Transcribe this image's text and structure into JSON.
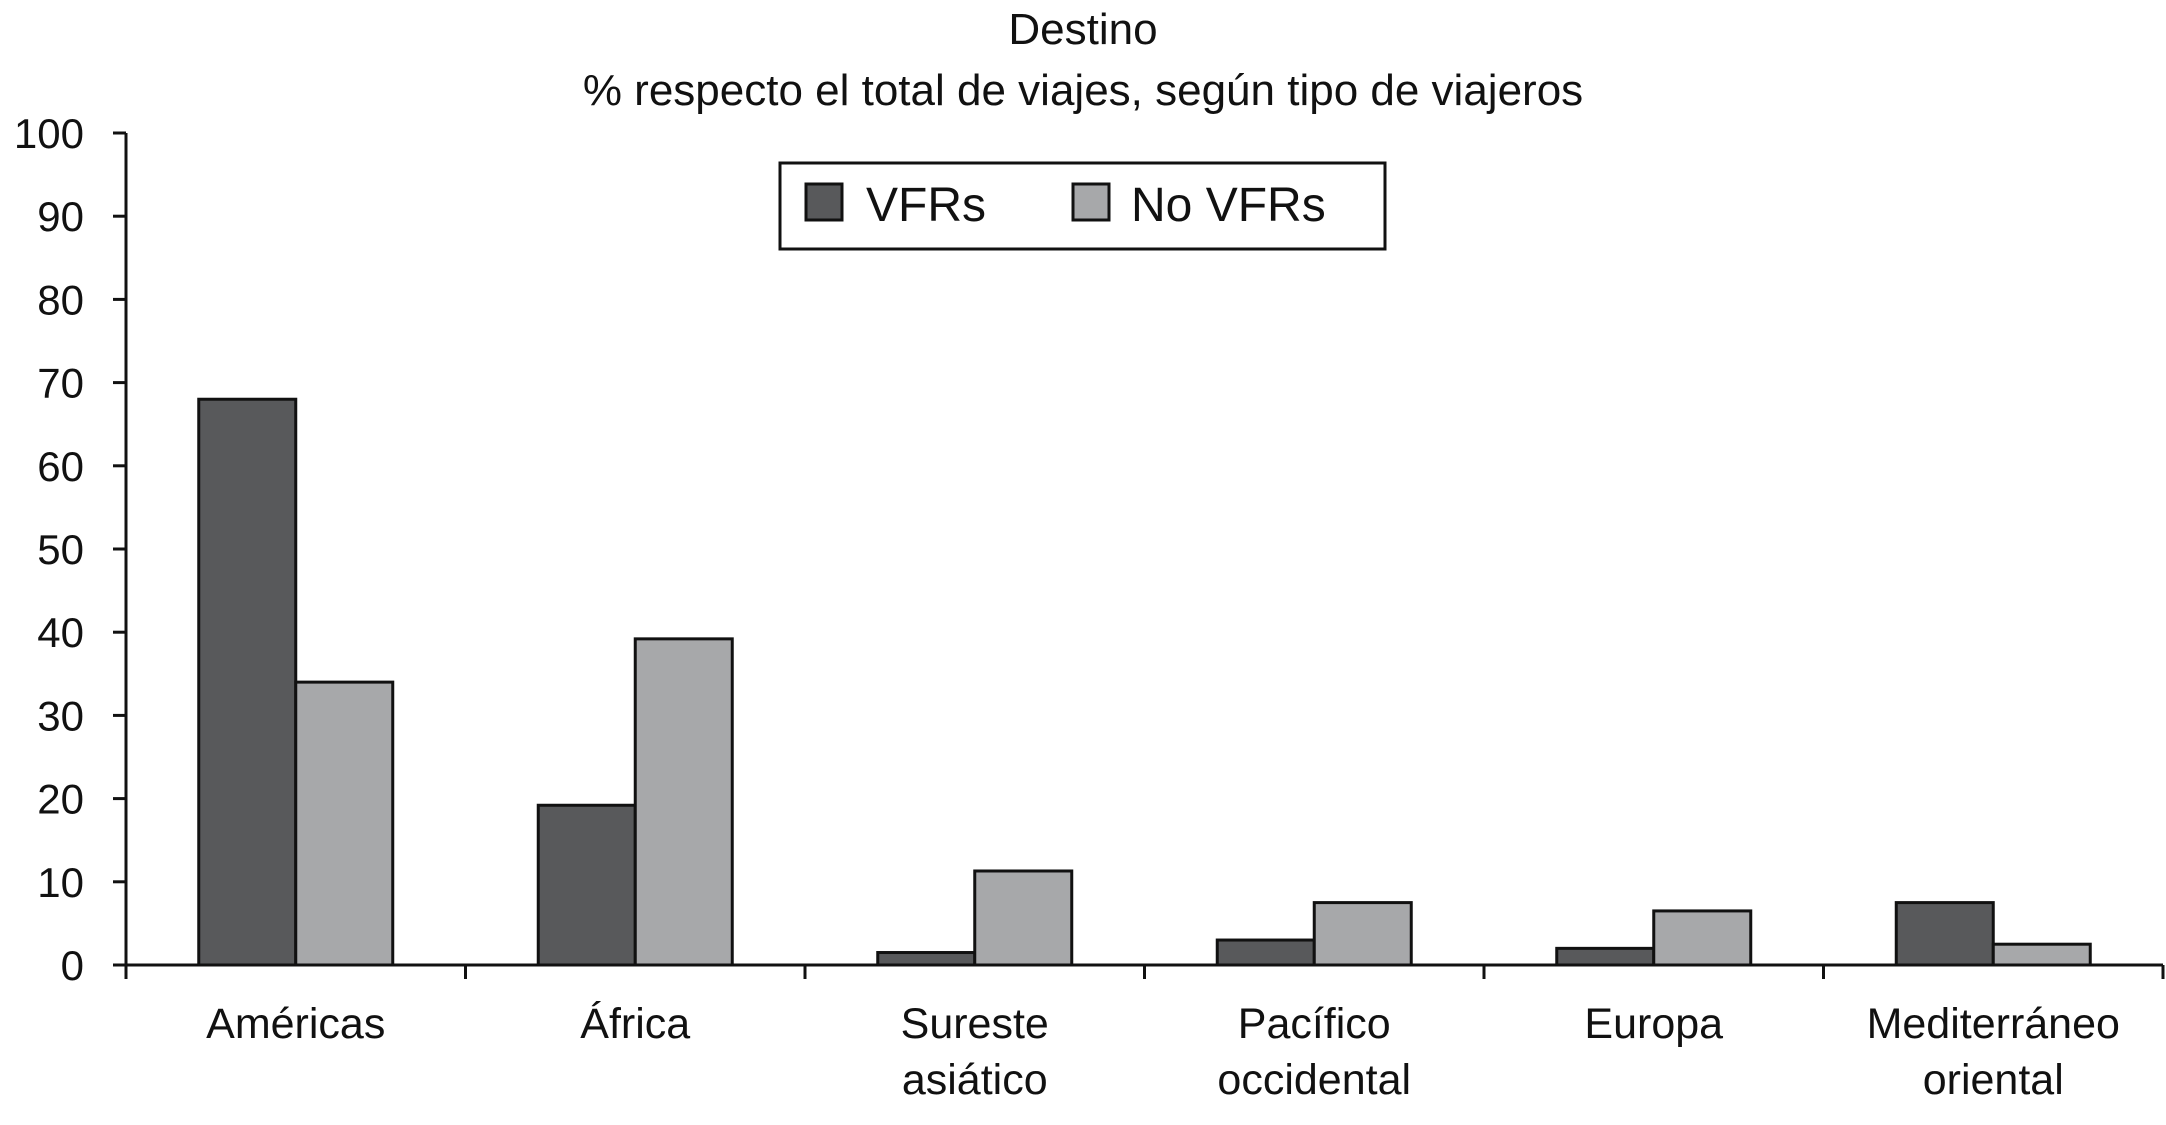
{
  "chart_data": {
    "type": "bar",
    "title": "Destino",
    "subtitle": "% respecto el total de viajes, según tipo de viajeros",
    "xlabel": "",
    "ylabel": "",
    "ylim": [
      0,
      100
    ],
    "yticks": [
      0,
      10,
      20,
      30,
      40,
      50,
      60,
      70,
      80,
      90,
      100
    ],
    "grid": false,
    "legend_position": "top-center",
    "categories": [
      [
        "Américas"
      ],
      [
        "África"
      ],
      [
        "Sureste",
        "asiático"
      ],
      [
        "Pacífico",
        "occidental"
      ],
      [
        "Europa"
      ],
      [
        "Mediterráneo",
        "oriental"
      ]
    ],
    "series": [
      {
        "name": "VFRs",
        "color": "#58595b",
        "values": [
          68,
          19.2,
          1.5,
          3,
          2,
          7.5
        ]
      },
      {
        "name": "No VFRs",
        "color": "#a7a8aa",
        "values": [
          34,
          39.2,
          11.3,
          7.5,
          6.5,
          2.5
        ]
      }
    ]
  }
}
